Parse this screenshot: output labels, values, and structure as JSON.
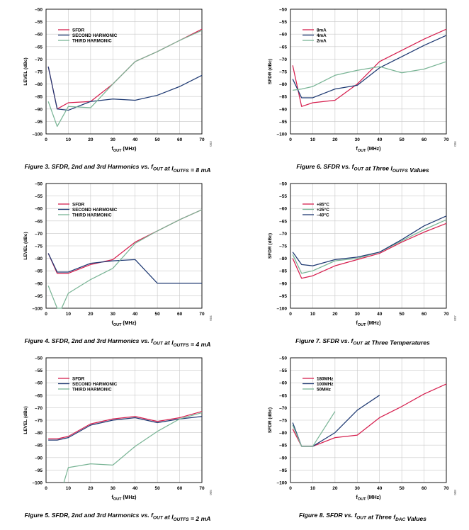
{
  "chart_data": [
    {
      "id": "fig3",
      "type": "line",
      "caption": "Figure 3. SFDR, 2nd and 3rd Harmonics vs. fOUT at IOUTFS = 8 mA",
      "ylabel": "LEVEL (dBc)",
      "xlabel": "fOUT (MHz)",
      "code": "003",
      "xlim": [
        0,
        70
      ],
      "ylim": [
        -100,
        -50
      ],
      "xticks": [
        0,
        10,
        20,
        30,
        40,
        50,
        60,
        70
      ],
      "yticks": [
        -50,
        -55,
        -60,
        -65,
        -70,
        -75,
        -80,
        -85,
        -90,
        -95,
        -100
      ],
      "legend_position": "top-left",
      "series": [
        {
          "name": "SFDR",
          "color": "#d6204f",
          "x": [
            1,
            5,
            10,
            20,
            30,
            40,
            50,
            60,
            70
          ],
          "y": [
            -73,
            -90,
            -87.5,
            -87,
            -80,
            -71,
            -67,
            -62.5,
            -58
          ]
        },
        {
          "name": "SECOND HARMONIC",
          "color": "#1f3a73",
          "x": [
            1,
            5,
            10,
            20,
            30,
            40,
            50,
            60,
            70
          ],
          "y": [
            -73,
            -90,
            -90.5,
            -87,
            -86,
            -86.5,
            -84.5,
            -81,
            -76.5
          ]
        },
        {
          "name": "THIRD HARMONIC",
          "color": "#7ab596",
          "x": [
            1,
            5,
            10,
            20,
            30,
            40,
            50,
            60,
            70
          ],
          "y": [
            -87,
            -97,
            -89,
            -89.5,
            -80,
            -71,
            -67,
            -62.5,
            -58.5
          ]
        }
      ]
    },
    {
      "id": "fig6",
      "type": "line",
      "caption": "Figure 6. SFDR vs. fOUT at Three IOUTFS Values",
      "ylabel": "SFDR (dBc)",
      "xlabel": "fOUT (MHz)",
      "code": "006",
      "xlim": [
        0,
        70
      ],
      "ylim": [
        -100,
        -50
      ],
      "xticks": [
        0,
        10,
        20,
        30,
        40,
        50,
        60,
        70
      ],
      "yticks": [
        -50,
        -55,
        -60,
        -65,
        -70,
        -75,
        -80,
        -85,
        -90,
        -95,
        -100
      ],
      "legend_position": "top-left",
      "series": [
        {
          "name": "8mA",
          "color": "#d6204f",
          "x": [
            1,
            5,
            10,
            20,
            30,
            40,
            50,
            60,
            70
          ],
          "y": [
            -72.5,
            -89,
            -87.5,
            -86.5,
            -80,
            -71,
            -66.5,
            -62,
            -58
          ]
        },
        {
          "name": "4mA",
          "color": "#1f3a73",
          "x": [
            1,
            5,
            10,
            20,
            30,
            40,
            50,
            60,
            70
          ],
          "y": [
            -78,
            -85.5,
            -85.5,
            -82,
            -80.5,
            -73.5,
            -69,
            -64.5,
            -60.5
          ]
        },
        {
          "name": "2mA",
          "color": "#7ab596",
          "x": [
            1,
            5,
            10,
            20,
            30,
            40,
            50,
            60,
            70
          ],
          "y": [
            -82.5,
            -82,
            -81,
            -76.5,
            -74.5,
            -73,
            -75.5,
            -74,
            -71
          ]
        }
      ]
    },
    {
      "id": "fig4",
      "type": "line",
      "caption": "Figure 4. SFDR, 2nd and 3rd Harmonics vs. fOUT at IOUTFS = 4 mA",
      "ylabel": "LEVEL (dBc)",
      "xlabel": "fOUT (MHz)",
      "code": "004",
      "xlim": [
        0,
        70
      ],
      "ylim": [
        -100,
        -50
      ],
      "xticks": [
        0,
        10,
        20,
        30,
        40,
        50,
        60,
        70
      ],
      "yticks": [
        -50,
        -55,
        -60,
        -65,
        -70,
        -75,
        -80,
        -85,
        -90,
        -95,
        -100
      ],
      "legend_position": "top-left",
      "series": [
        {
          "name": "SFDR",
          "color": "#d6204f",
          "x": [
            1,
            5,
            10,
            20,
            30,
            40,
            50,
            60,
            70
          ],
          "y": [
            -78,
            -86,
            -86,
            -82.5,
            -80.5,
            -73.5,
            -69,
            -64.5,
            -60.5
          ]
        },
        {
          "name": "SECOND HARMONIC",
          "color": "#1f3a73",
          "x": [
            1,
            5,
            10,
            20,
            30,
            40,
            50,
            60,
            70
          ],
          "y": [
            -78,
            -85.5,
            -85.5,
            -82,
            -81,
            -80.5,
            -90,
            -90,
            -90
          ]
        },
        {
          "name": "THIRD HARMONIC",
          "color": "#7ab596",
          "x": [
            1,
            5,
            7,
            10,
            20,
            30,
            40,
            50,
            60,
            70
          ],
          "y": [
            -91,
            -100,
            -100,
            -94,
            -88.5,
            -84,
            -74,
            -69,
            -64.5,
            -60.5
          ]
        }
      ]
    },
    {
      "id": "fig7",
      "type": "line",
      "caption": "Figure 7. SFDR vs. fOUT at Three Temperatures",
      "ylabel": "SFDR (dBc)",
      "xlabel": "fOUT (MHz)",
      "code": "007",
      "xlim": [
        0,
        70
      ],
      "ylim": [
        -100,
        -50
      ],
      "xticks": [
        0,
        10,
        20,
        30,
        40,
        50,
        60,
        70
      ],
      "yticks": [
        -50,
        -55,
        -60,
        -65,
        -70,
        -75,
        -80,
        -85,
        -90,
        -95,
        -100
      ],
      "legend_position": "top-left",
      "series": [
        {
          "name": "+85°C",
          "color": "#d6204f",
          "x": [
            1,
            5,
            10,
            20,
            30,
            40,
            50,
            60,
            70
          ],
          "y": [
            -80,
            -88,
            -87,
            -83,
            -80.5,
            -78,
            -73.5,
            -69.5,
            -66
          ]
        },
        {
          "name": "+25°C",
          "color": "#7ab596",
          "x": [
            1,
            5,
            10,
            20,
            30,
            40,
            50,
            60,
            70
          ],
          "y": [
            -78.5,
            -86,
            -85,
            -81,
            -80,
            -77.5,
            -73,
            -68.5,
            -64.5
          ]
        },
        {
          "name": "–40°C",
          "color": "#1f3a73",
          "x": [
            1,
            5,
            10,
            20,
            30,
            40,
            50,
            60,
            70
          ],
          "y": [
            -77.5,
            -82.5,
            -83,
            -80.5,
            -79.5,
            -77.5,
            -72.5,
            -67,
            -63
          ]
        }
      ]
    },
    {
      "id": "fig5",
      "type": "line",
      "caption": "Figure 5. SFDR, 2nd and 3rd Harmonics vs. fOUT at IOUTFS = 2 mA",
      "ylabel": "LEVEL (dBc)",
      "xlabel": "fOUT (MHz)",
      "code": "005",
      "xlim": [
        0,
        70
      ],
      "ylim": [
        -100,
        -50
      ],
      "xticks": [
        0,
        10,
        20,
        30,
        40,
        50,
        60,
        70
      ],
      "yticks": [
        -50,
        -55,
        -60,
        -65,
        -70,
        -75,
        -80,
        -85,
        -90,
        -95,
        -100
      ],
      "legend_position": "top-left",
      "series": [
        {
          "name": "SFDR",
          "color": "#d6204f",
          "x": [
            1,
            5,
            10,
            20,
            30,
            40,
            50,
            60,
            70
          ],
          "y": [
            -82.5,
            -82.5,
            -81.5,
            -76.5,
            -74.5,
            -73.5,
            -75.5,
            -74,
            -71.5
          ]
        },
        {
          "name": "SECOND HARMONIC",
          "color": "#1f3a73",
          "x": [
            1,
            5,
            10,
            20,
            30,
            40,
            50,
            60,
            70
          ],
          "y": [
            -83,
            -83,
            -82,
            -77,
            -75,
            -74,
            -76,
            -74.5,
            -73.5
          ]
        },
        {
          "name": "THIRD HARMONIC",
          "color": "#7ab596",
          "x": [
            8,
            10,
            20,
            30,
            40,
            50,
            60,
            70
          ],
          "y": [
            -100,
            -94,
            -92.5,
            -93,
            -85.5,
            -79.5,
            -74.5,
            -72
          ]
        }
      ]
    },
    {
      "id": "fig8",
      "type": "line",
      "caption": "Figure 8. SFDR vs. fOUT at Three fDAC Values",
      "ylabel": "SFDR (dBc)",
      "xlabel": "fOUT (MHz)",
      "code": "008",
      "xlim": [
        0,
        70
      ],
      "ylim": [
        -100,
        -50
      ],
      "xticks": [
        0,
        10,
        20,
        30,
        40,
        50,
        60,
        70
      ],
      "yticks": [
        -50,
        -55,
        -60,
        -65,
        -70,
        -75,
        -80,
        -85,
        -90,
        -95,
        -100
      ],
      "legend_position": "top-left",
      "series": [
        {
          "name": "180MHz",
          "color": "#d6204f",
          "x": [
            1,
            5,
            10,
            20,
            30,
            40,
            50,
            60,
            70
          ],
          "y": [
            -78.5,
            -85.5,
            -85.5,
            -82,
            -81,
            -74,
            -69.5,
            -64.5,
            -60.5
          ]
        },
        {
          "name": "100MHz",
          "color": "#1f3a73",
          "x": [
            1,
            5,
            10,
            20,
            30,
            40
          ],
          "y": [
            -76,
            -85.5,
            -85.5,
            -80,
            -71,
            -65
          ]
        },
        {
          "name": "50MHz",
          "color": "#7ab596",
          "x": [
            1,
            5,
            10,
            20
          ],
          "y": [
            -77,
            -85.5,
            -85.5,
            -71.5
          ]
        }
      ]
    }
  ]
}
